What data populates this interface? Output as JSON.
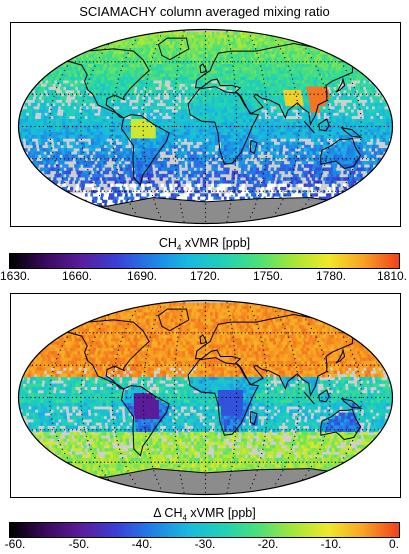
{
  "top": {
    "title": "SCIAMACHY column averaged mixing ratio",
    "colorbar_label_prefix": "CH",
    "colorbar_label_sub": "4",
    "colorbar_label_suffix": " xVMR [ppb]",
    "ticks": [
      "1630.",
      "1660.",
      "1690.",
      "1720.",
      "1750.",
      "1780.",
      "1810."
    ],
    "colormap": [
      "#000000",
      "#3a0a5e",
      "#5b1c9a",
      "#3a3fd6",
      "#1f7fe6",
      "#18b8e0",
      "#1fd0b8",
      "#49e07a",
      "#a4e63a",
      "#f0e82a",
      "#f7a323",
      "#f0401c"
    ]
  },
  "bottom": {
    "colorbar_label_prefix": "Δ CH",
    "colorbar_label_sub": "4",
    "colorbar_label_suffix": " xVMR [ppb]",
    "ticks": [
      "-60.",
      "-50.",
      "-40.",
      "-30.",
      "-20.",
      "-10.",
      "0."
    ],
    "colormap": [
      "#000000",
      "#3a0a5e",
      "#5b1c9a",
      "#3a3fd6",
      "#1f7fe6",
      "#18b8e0",
      "#1fd0b8",
      "#49e07a",
      "#a4e63a",
      "#f0e82a",
      "#f7a323",
      "#f0401c"
    ]
  },
  "colors": {
    "no_data_gray": "#cfcfcf",
    "land_gray": "#8c8c8c",
    "coastline": "#000000"
  }
}
